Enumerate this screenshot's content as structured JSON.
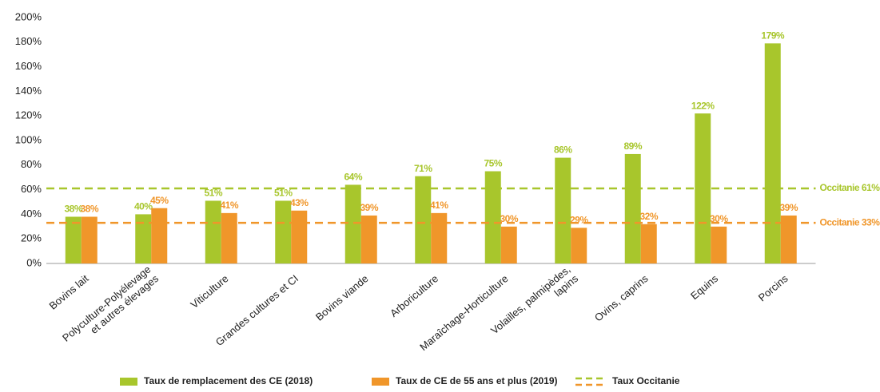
{
  "chart_data": {
    "type": "bar",
    "categories": [
      [
        "Bovins lait"
      ],
      [
        "Polyculture-Polyélevage",
        "et autres élevages"
      ],
      [
        "Viticulture"
      ],
      [
        "Grandes cultures et CI"
      ],
      [
        "Bovins viande"
      ],
      [
        "Arboriculture"
      ],
      [
        "Maraîchage-Horticulture"
      ],
      [
        "Volailles, palmipèdes,",
        "lapins"
      ],
      [
        "Ovins, caprins"
      ],
      [
        "Equins"
      ],
      [
        "Porcins"
      ]
    ],
    "series": [
      {
        "name": "Taux de remplacement des CE (2018)",
        "color": "#a8c62c",
        "values": [
          38,
          40,
          51,
          51,
          64,
          71,
          75,
          86,
          89,
          122,
          179
        ],
        "value_labels": [
          "38%",
          "40%",
          "51%",
          "51%",
          "64%",
          "71%",
          "75%",
          "86%",
          "89%",
          "122%",
          "179%"
        ]
      },
      {
        "name": "Taux de CE de 55 ans et plus (2019)",
        "color": "#f0962a",
        "values": [
          38,
          45,
          41,
          43,
          39,
          41,
          30,
          29,
          32,
          30,
          39
        ],
        "value_labels": [
          "38%",
          "45%",
          "41%",
          "43%",
          "39%",
          "41%",
          "30%",
          "29%",
          "32%",
          "30%",
          "39%"
        ]
      }
    ],
    "reference_lines": [
      {
        "value": 61,
        "label": "Occitanie 61%",
        "color": "#a8c62c"
      },
      {
        "value": 33,
        "label": "Occitanie 33%",
        "color": "#f0962a"
      }
    ],
    "reference_legend": "Taux Occitanie",
    "ylim": [
      0,
      200
    ],
    "yticks": [
      {
        "value": 0,
        "label": "0%"
      },
      {
        "value": 20,
        "label": "20%"
      },
      {
        "value": 40,
        "label": "40%"
      },
      {
        "value": 60,
        "label": "60%"
      },
      {
        "value": 80,
        "label": "80%"
      },
      {
        "value": 100,
        "label": "100%"
      },
      {
        "value": 120,
        "label": "120%"
      },
      {
        "value": 140,
        "label": "140%"
      },
      {
        "value": 160,
        "label": "160%"
      },
      {
        "value": 180,
        "label": "180%"
      },
      {
        "value": 200,
        "label": "200%"
      }
    ],
    "grid": false
  }
}
